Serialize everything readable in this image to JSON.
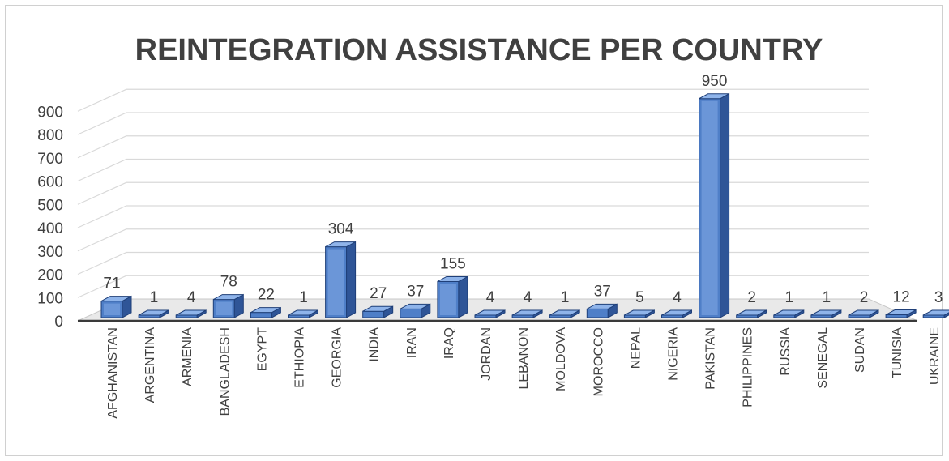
{
  "chart_data": {
    "type": "bar",
    "title": "REINTEGRATION ASSISTANCE PER COUNTRY",
    "xlabel": "",
    "ylabel": "",
    "ylim": [
      0,
      900
    ],
    "yticks": [
      0,
      100,
      200,
      300,
      400,
      500,
      600,
      700,
      800,
      900
    ],
    "grid": true,
    "legend": "none",
    "style": "3d-column",
    "colors": {
      "bar_front": "#4f7fc8",
      "bar_top": "#8fb4ea",
      "bar_side": "#2f5597",
      "bar_edge": "#1f3f78",
      "floor": "#c8c8c8",
      "grid": "#d9d9d9",
      "text": "#404040"
    },
    "categories": [
      "AFGHANISTAN",
      "ARGENTINA",
      "ARMENIA",
      "BANGLADESH",
      "EGYPT",
      "ETHIOPIA",
      "GEORGIA",
      "INDIA",
      "IRAN",
      "IRAQ",
      "JORDAN",
      "LEBANON",
      "MOLDOVA",
      "MOROCCO",
      "NEPAL",
      "NIGERIA",
      "PAKISTAN",
      "PHILIPPINES",
      "RUSSIA",
      "SENEGAL",
      "SUDAN",
      "TUNISIA",
      "UKRAINE"
    ],
    "values": [
      71,
      1,
      4,
      78,
      22,
      1,
      304,
      27,
      37,
      155,
      4,
      4,
      1,
      37,
      5,
      4,
      950,
      2,
      1,
      1,
      2,
      12,
      3
    ]
  }
}
